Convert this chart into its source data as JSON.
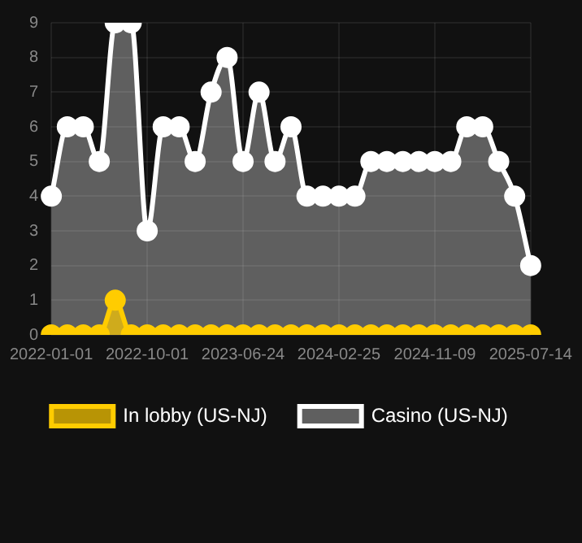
{
  "chart_data": {
    "type": "area",
    "categories": [
      "2022-01-01",
      null,
      null,
      null,
      null,
      null,
      "2022-10-01",
      null,
      null,
      null,
      null,
      null,
      "2023-06-24",
      null,
      null,
      null,
      null,
      null,
      "2024-02-25",
      null,
      null,
      null,
      null,
      null,
      "2024-11-09",
      null,
      null,
      null,
      null,
      null,
      "2025-07-14"
    ],
    "series": [
      {
        "name": "In lobby (US-NJ)",
        "color": "#ffcc00",
        "values": [
          0,
          0,
          0,
          0,
          1,
          0,
          0,
          0,
          0,
          0,
          0,
          0,
          0,
          0,
          0,
          0,
          0,
          0,
          0,
          0,
          0,
          0,
          0,
          0,
          0,
          0,
          0,
          0,
          0,
          0,
          0
        ]
      },
      {
        "name": "Casino (US-NJ)",
        "color": "#ffffff",
        "values": [
          4,
          6,
          6,
          5,
          9,
          9,
          3,
          6,
          6,
          5,
          7,
          8,
          5,
          7,
          5,
          6,
          4,
          4,
          4,
          4,
          5,
          5,
          5,
          5,
          5,
          5,
          6,
          6,
          5,
          4,
          2
        ]
      }
    ],
    "ylim": [
      0,
      9
    ],
    "yticks": [
      0,
      1,
      2,
      3,
      4,
      5,
      6,
      7,
      8,
      9
    ],
    "grid": true,
    "legend": "bottom",
    "marker": "circle"
  }
}
